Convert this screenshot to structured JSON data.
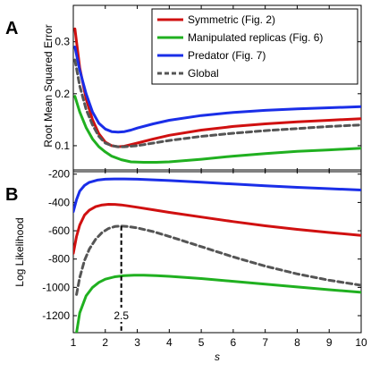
{
  "chart_data": [
    {
      "type": "line",
      "panel_label": "A",
      "ylabel": "Root Mean Squared Error",
      "xlim": [
        1,
        10
      ],
      "ylim": [
        0.05,
        0.37
      ],
      "yticks": [
        0.1,
        0.2,
        0.3
      ],
      "ytick_labels": [
        "0.1",
        "0.2",
        "0.3"
      ],
      "legend_position": "top-right",
      "series": [
        {
          "name": "Symmetric (Fig. 2)",
          "color": "#d01010",
          "dashed": false,
          "x": [
            1.05,
            1.2,
            1.4,
            1.6,
            1.8,
            2.0,
            2.2,
            2.4,
            2.6,
            3.0,
            3.5,
            4,
            5,
            6,
            7,
            8,
            9,
            10
          ],
          "y": [
            0.325,
            0.25,
            0.19,
            0.15,
            0.123,
            0.107,
            0.1,
            0.098,
            0.099,
            0.105,
            0.113,
            0.12,
            0.13,
            0.137,
            0.142,
            0.146,
            0.149,
            0.152
          ]
        },
        {
          "name": "Manipulated replicas (Fig. 6)",
          "color": "#20b020",
          "dashed": false,
          "x": [
            1.05,
            1.2,
            1.4,
            1.6,
            1.8,
            2.0,
            2.2,
            2.5,
            2.8,
            3.2,
            3.6,
            4,
            5,
            6,
            7,
            8,
            9,
            10
          ],
          "y": [
            0.195,
            0.165,
            0.135,
            0.113,
            0.098,
            0.088,
            0.08,
            0.073,
            0.069,
            0.068,
            0.068,
            0.069,
            0.074,
            0.08,
            0.085,
            0.089,
            0.092,
            0.095
          ]
        },
        {
          "name": "Predator (Fig. 7)",
          "color": "#1a2ee8",
          "dashed": false,
          "x": [
            1.05,
            1.2,
            1.4,
            1.6,
            1.8,
            2.0,
            2.2,
            2.4,
            2.6,
            2.8,
            3.0,
            3.5,
            4,
            5,
            6,
            7,
            8,
            9,
            10
          ],
          "y": [
            0.29,
            0.245,
            0.2,
            0.165,
            0.143,
            0.132,
            0.127,
            0.126,
            0.127,
            0.13,
            0.134,
            0.142,
            0.149,
            0.158,
            0.164,
            0.168,
            0.171,
            0.173,
            0.175
          ]
        },
        {
          "name": "Global",
          "color": "#555555",
          "dashed": true,
          "x": [
            1.05,
            1.2,
            1.4,
            1.6,
            1.8,
            2.0,
            2.2,
            2.4,
            2.6,
            3.0,
            3.5,
            4,
            5,
            6,
            7,
            8,
            9,
            10
          ],
          "y": [
            0.265,
            0.215,
            0.17,
            0.14,
            0.118,
            0.105,
            0.1,
            0.098,
            0.098,
            0.1,
            0.105,
            0.11,
            0.118,
            0.124,
            0.129,
            0.133,
            0.137,
            0.14
          ]
        }
      ]
    },
    {
      "type": "line",
      "panel_label": "B",
      "xlabel": "s",
      "ylabel": "Log Likelihood",
      "xlim": [
        1,
        10
      ],
      "ylim": [
        -1320,
        -170
      ],
      "xticks": [
        1,
        2,
        3,
        4,
        5,
        6,
        7,
        8,
        9,
        10
      ],
      "xtick_labels": [
        "1",
        "2",
        "3",
        "4",
        "5",
        "6",
        "7",
        "8",
        "9",
        "10"
      ],
      "yticks": [
        -1200,
        -1000,
        -800,
        -600,
        -400,
        -200
      ],
      "ytick_labels": [
        "-1200",
        "-1000",
        "-800",
        "-600",
        "-400",
        "-200"
      ],
      "annotation": {
        "text": "2.5",
        "x": 2.5
      },
      "series": [
        {
          "name": "Symmetric (Fig. 2)",
          "color": "#d01010",
          "dashed": false,
          "x": [
            1.0,
            1.1,
            1.2,
            1.35,
            1.5,
            1.7,
            1.9,
            2.1,
            2.3,
            2.5,
            2.7,
            3.0,
            3.5,
            4,
            5,
            6,
            7,
            8,
            9,
            10
          ],
          "y": [
            -760,
            -640,
            -560,
            -490,
            -455,
            -430,
            -418,
            -413,
            -414,
            -418,
            -424,
            -434,
            -452,
            -470,
            -503,
            -535,
            -565,
            -590,
            -612,
            -633
          ]
        },
        {
          "name": "Manipulated replicas (Fig. 6)",
          "color": "#20b020",
          "dashed": false,
          "x": [
            1.1,
            1.2,
            1.4,
            1.6,
            1.8,
            2.0,
            2.3,
            2.6,
            2.9,
            3.2,
            3.6,
            4,
            5,
            6,
            7,
            8,
            9,
            10
          ],
          "y": [
            -1320,
            -1180,
            -1060,
            -1000,
            -965,
            -942,
            -925,
            -917,
            -914,
            -914,
            -917,
            -922,
            -938,
            -957,
            -977,
            -997,
            -1017,
            -1035
          ]
        },
        {
          "name": "Predator (Fig. 7)",
          "color": "#1a2ee8",
          "dashed": false,
          "x": [
            1.0,
            1.1,
            1.2,
            1.35,
            1.5,
            1.75,
            2.0,
            2.3,
            2.6,
            3.0,
            3.5,
            4,
            5,
            6,
            7,
            8,
            9,
            10
          ],
          "y": [
            -465,
            -380,
            -320,
            -280,
            -258,
            -242,
            -236,
            -234,
            -234,
            -236,
            -240,
            -245,
            -257,
            -270,
            -282,
            -293,
            -303,
            -312
          ]
        },
        {
          "name": "Global",
          "color": "#555555",
          "dashed": true,
          "x": [
            1.1,
            1.2,
            1.35,
            1.5,
            1.7,
            1.9,
            2.1,
            2.3,
            2.5,
            2.7,
            3.0,
            3.5,
            4,
            5,
            6,
            7,
            8,
            9,
            10
          ],
          "y": [
            -1050,
            -930,
            -810,
            -730,
            -660,
            -612,
            -584,
            -570,
            -567,
            -570,
            -580,
            -606,
            -640,
            -712,
            -785,
            -850,
            -905,
            -950,
            -985
          ]
        }
      ]
    }
  ]
}
